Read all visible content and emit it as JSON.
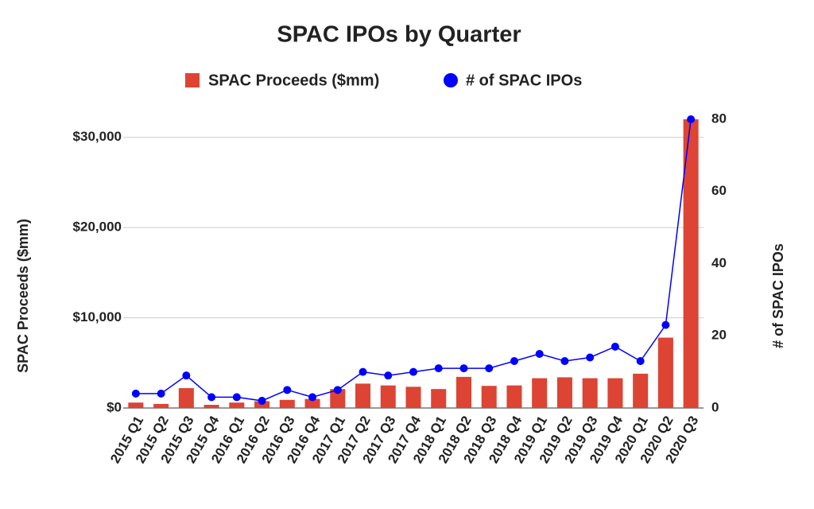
{
  "chart_data": {
    "type": "bar-line",
    "title": "SPAC IPOs by Quarter",
    "categories": [
      "2015 Q1",
      "2015 Q2",
      "2015 Q3",
      "2015 Q4",
      "2016 Q1",
      "2016 Q2",
      "2016 Q3",
      "2016 Q4",
      "2017 Q1",
      "2017 Q2",
      "2017 Q3",
      "2017 Q4",
      "2018 Q1",
      "2018 Q2",
      "2018 Q3",
      "2018 Q4",
      "2019 Q1",
      "2019 Q2",
      "2019 Q3",
      "2019 Q4",
      "2020 Q1",
      "2020 Q2",
      "2020 Q3"
    ],
    "series": [
      {
        "name": "SPAC Proceeds ($mm)",
        "type": "bar",
        "axis": "y",
        "color": "#dd4433",
        "values": [
          600,
          450,
          2200,
          350,
          600,
          750,
          900,
          1000,
          2100,
          2700,
          2500,
          2350,
          2100,
          3450,
          2450,
          2500,
          3300,
          3400,
          3300,
          3300,
          3800,
          7800,
          32000
        ]
      },
      {
        "name": "# of SPAC IPOs",
        "type": "line",
        "axis": "y2",
        "color": "#0000ff",
        "values": [
          4,
          4,
          9,
          3,
          3,
          2,
          5,
          3,
          5,
          10,
          9,
          10,
          11,
          11,
          11,
          13,
          15,
          13,
          14,
          17,
          13,
          23,
          80
        ]
      }
    ],
    "y_label": "SPAC Proceeds ($mm)",
    "y2_label": "# of SPAC IPOs",
    "ylim": [
      0,
      32000
    ],
    "yticks": [
      {
        "value": 0,
        "label": "$0"
      },
      {
        "value": 10000,
        "label": "$10,000"
      },
      {
        "value": 20000,
        "label": "$20,000"
      },
      {
        "value": 30000,
        "label": "$30,000"
      }
    ],
    "y2lim": [
      0,
      80
    ],
    "y2ticks": [
      0,
      20,
      40,
      60,
      80
    ],
    "grid": true,
    "legend": "top"
  }
}
